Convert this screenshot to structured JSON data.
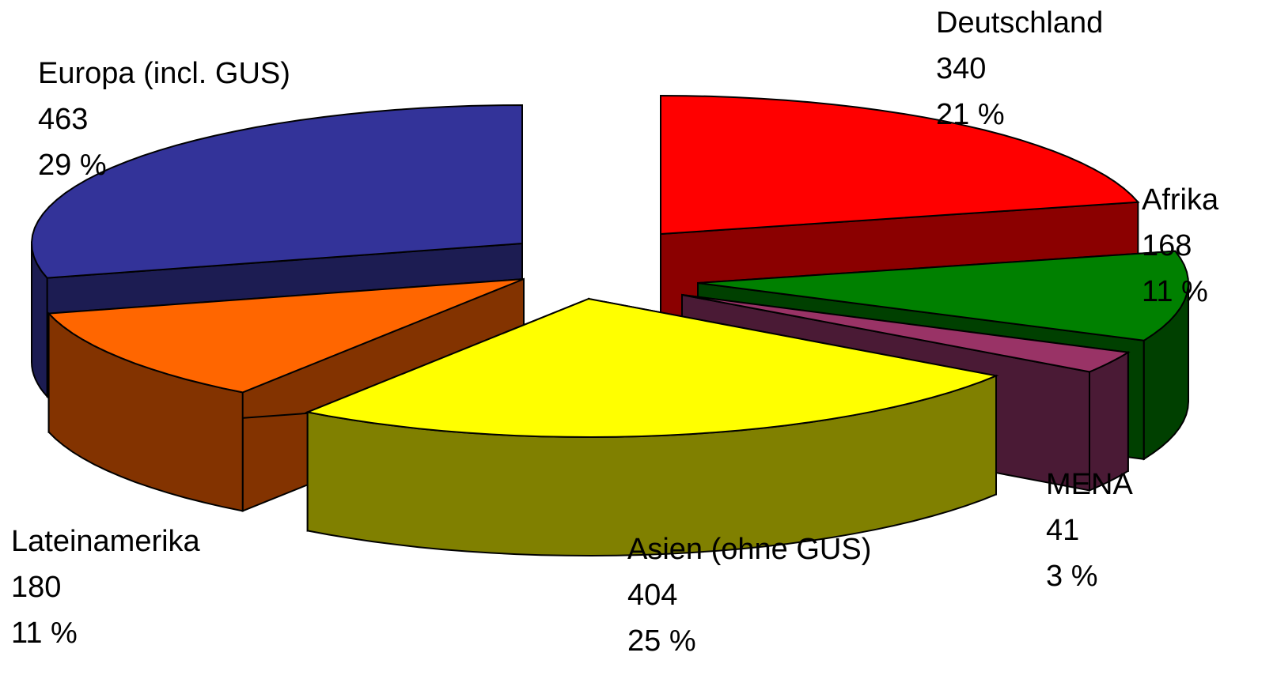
{
  "chart_data": {
    "type": "pie",
    "title": "",
    "three_d": true,
    "exploded": true,
    "slices": [
      {
        "name": "Deutschland",
        "value": 340,
        "percent_label": "21 %",
        "value_label": "340",
        "color": "#ff0000",
        "side_color": "#8b0000"
      },
      {
        "name": "Afrika",
        "value": 168,
        "percent_label": "11 %",
        "value_label": "168",
        "color": "#008000",
        "side_color": "#004000"
      },
      {
        "name": "MENA",
        "value": 41,
        "percent_label": "3 %",
        "value_label": "41",
        "color": "#993366",
        "side_color": "#4a1a35"
      },
      {
        "name": "Asien (ohne GUS)",
        "value": 404,
        "percent_label": "25 %",
        "value_label": "404",
        "color": "#ffff00",
        "side_color": "#808000"
      },
      {
        "name": "Lateinamerika",
        "value": 180,
        "percent_label": "11 %",
        "value_label": "180",
        "color": "#ff6600",
        "side_color": "#833300"
      },
      {
        "name": "Europa (incl. GUS)",
        "value": 463,
        "percent_label": "29 %",
        "value_label": "463",
        "color": "#333399",
        "side_color": "#1c1c52"
      }
    ],
    "legend": "none",
    "data_labels": "name, value, percent"
  }
}
